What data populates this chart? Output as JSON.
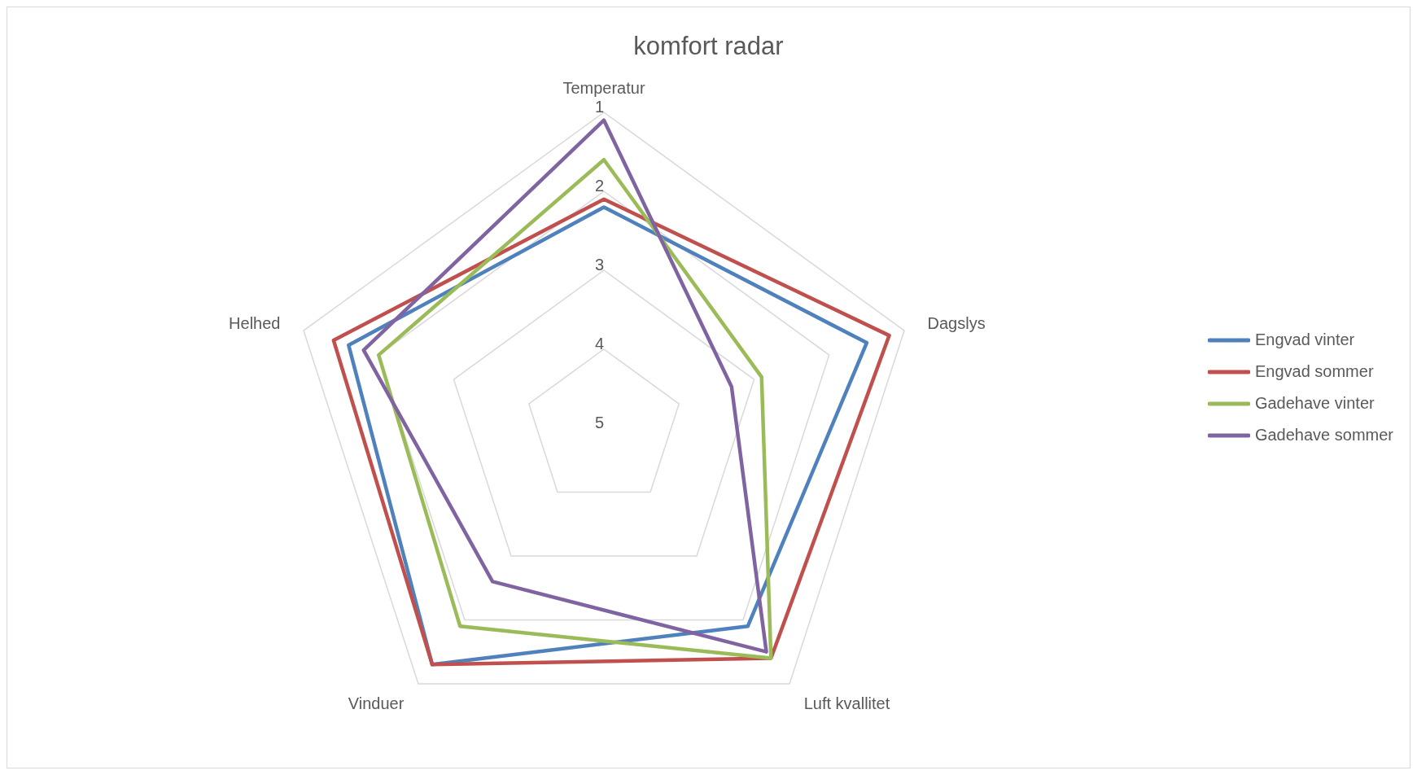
{
  "chart_data": {
    "type": "radar",
    "title": "komfort radar",
    "categories": [
      "Temperatur",
      "Dagslys",
      "Luft kvallitet",
      "Vinduer",
      "Helhed"
    ],
    "series": [
      {
        "name": "Engvad vinter",
        "color": "#4f81bd",
        "values": [
          2.2,
          1.5,
          1.9,
          1.3,
          1.6
        ]
      },
      {
        "name": "Engvad sommer",
        "color": "#c0504d",
        "values": [
          2.1,
          1.2,
          1.4,
          1.3,
          1.4
        ]
      },
      {
        "name": "Gadehave vinter",
        "color": "#9bbb59",
        "values": [
          1.6,
          2.9,
          1.4,
          1.9,
          2.0
        ]
      },
      {
        "name": "Gadehave sommer",
        "color": "#8064a2",
        "values": [
          1.1,
          3.3,
          1.5,
          2.6,
          1.8
        ]
      }
    ],
    "ylim": [
      5,
      1
    ],
    "yticks": [
      1,
      2,
      3,
      4,
      5
    ],
    "grid": true,
    "legend": "right",
    "marker": "none",
    "line_style": "solid"
  }
}
